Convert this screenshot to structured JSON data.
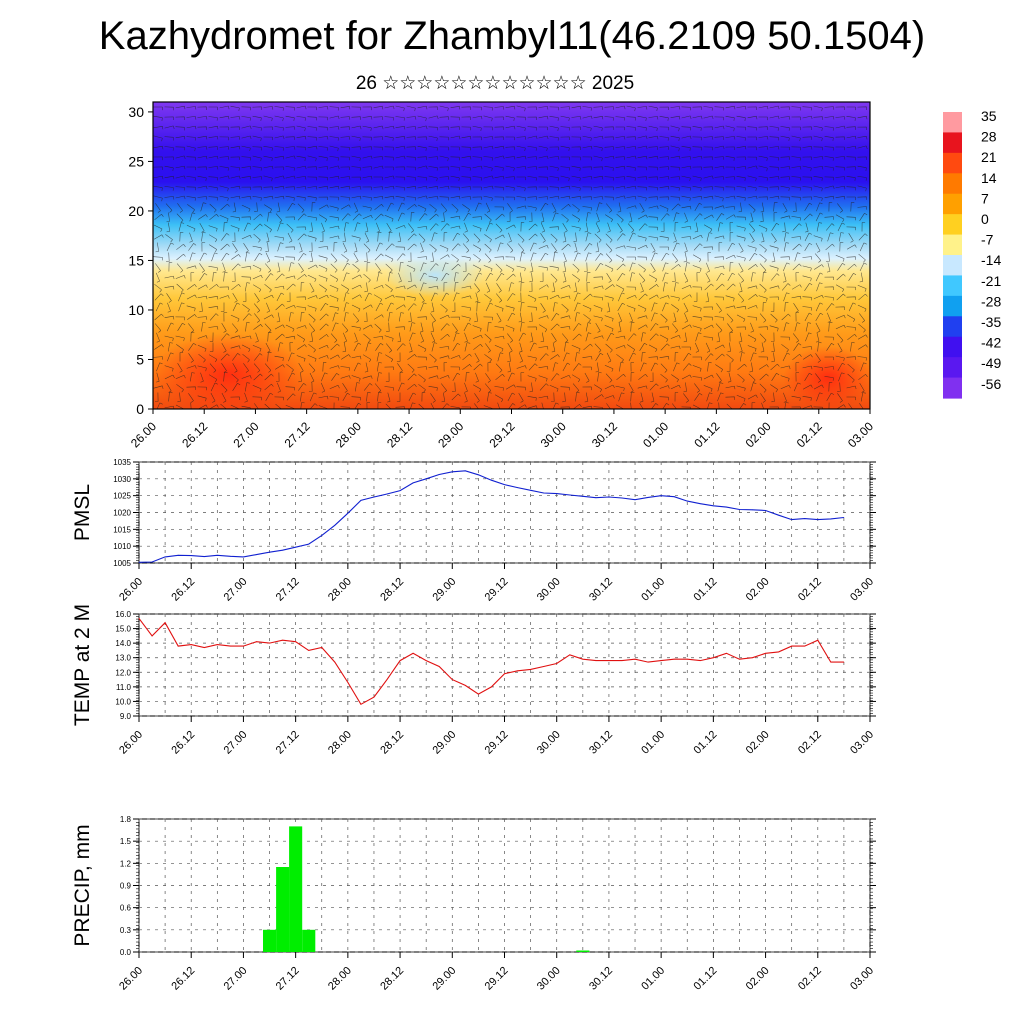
{
  "title": "Kazhydromet for Zhambyl11(46.2109 50.1504)",
  "subtitle": "26 ☆☆☆☆☆☆☆☆☆☆☆☆ 2025",
  "time_labels": [
    "26.00",
    "26.12",
    "27.00",
    "27.12",
    "28.00",
    "28.12",
    "29.00",
    "29.12",
    "30.00",
    "30.12",
    "01.00",
    "01.12",
    "02.00",
    "02.12",
    "03.00"
  ],
  "colors": {
    "pmsl_line": "#1020d0",
    "temp_line": "#e01010",
    "precip_bar": "#00ee00"
  },
  "chart_data": [
    {
      "type": "heatmap",
      "title": "",
      "ylabel": "",
      "ylim": [
        0,
        31
      ],
      "yticks": [
        "0",
        "5",
        "10",
        "15",
        "20",
        "25",
        "30"
      ],
      "x": [
        "26.00",
        "26.12",
        "27.00",
        "27.12",
        "28.00",
        "28.12",
        "29.00",
        "29.12",
        "30.00",
        "30.12",
        "01.00",
        "01.12",
        "02.00",
        "02.12",
        "03.00"
      ],
      "colorbar": {
        "labels": [
          "35",
          "28",
          "21",
          "14",
          "7",
          "0",
          "-7",
          "-14",
          "-21",
          "-28",
          "-35",
          "-42",
          "-49",
          "-56"
        ],
        "colors": [
          "#ff9aa0",
          "#e8141e",
          "#ff4a10",
          "#ff7a00",
          "#ffa000",
          "#ffd020",
          "#fff28a",
          "#c8e8ff",
          "#40c8ff",
          "#10a0f0",
          "#2040f0",
          "#4010f0",
          "#5a18f0",
          "#8030f0"
        ]
      },
      "overlay": "wind-vectors"
    },
    {
      "type": "line",
      "ylabel": "PMSL",
      "ylim": [
        1005,
        1035
      ],
      "yticks": [
        "1005",
        "1010",
        "1015",
        "1020",
        "1025",
        "1030",
        "1035"
      ],
      "grid": true,
      "series": [
        {
          "x": [
            0,
            0.25,
            0.5,
            0.75,
            1,
            1.25,
            1.5,
            1.75,
            2,
            2.25,
            2.5,
            2.75,
            3,
            3.25,
            3.5,
            3.75,
            4,
            4.25,
            4.5,
            4.75,
            5,
            5.25,
            5.5,
            5.75,
            6,
            6.25,
            6.5,
            6.75,
            7,
            7.25,
            7.5,
            7.75,
            8,
            8.25,
            8.5,
            8.75,
            9,
            9.25,
            9.5,
            9.75,
            10,
            10.25,
            10.5,
            10.75,
            11,
            11.25,
            11.5,
            11.75,
            12,
            12.25,
            12.5,
            12.75,
            13,
            13.25,
            13.5
          ],
          "values": [
            1005.2,
            1005.3,
            1006.8,
            1007.3,
            1007.2,
            1006.9,
            1007.3,
            1007.0,
            1006.8,
            1007.5,
            1008.2,
            1008.8,
            1009.7,
            1010.6,
            1013.2,
            1016.2,
            1019.8,
            1023.6,
            1024.6,
            1025.5,
            1026.5,
            1028.8,
            1030.0,
            1031.3,
            1032.1,
            1032.4,
            1031.2,
            1029.6,
            1028.3,
            1027.4,
            1026.6,
            1025.8,
            1025.6,
            1025.2,
            1024.8,
            1024.4,
            1024.6,
            1024.3,
            1023.8,
            1024.5,
            1025.0,
            1024.7,
            1023.4,
            1022.6,
            1022.0,
            1021.6,
            1020.9,
            1020.8,
            1020.6,
            1019.2,
            1017.9,
            1018.2,
            1017.9,
            1018.1,
            1018.5
          ]
        }
      ]
    },
    {
      "type": "line",
      "ylabel": "TEMP at 2 M",
      "ylim": [
        9,
        16
      ],
      "yticks": [
        "9.0",
        "10.0",
        "11.0",
        "12.0",
        "13.0",
        "14.0",
        "15.0",
        "16.0"
      ],
      "grid": true,
      "series": [
        {
          "x": [
            0,
            0.25,
            0.5,
            0.75,
            1,
            1.25,
            1.5,
            1.75,
            2,
            2.25,
            2.5,
            2.75,
            3,
            3.25,
            3.5,
            3.75,
            4,
            4.25,
            4.5,
            4.75,
            5,
            5.25,
            5.5,
            5.75,
            6,
            6.25,
            6.5,
            6.75,
            7,
            7.25,
            7.5,
            7.75,
            8,
            8.25,
            8.5,
            8.75,
            9,
            9.25,
            9.5,
            9.75,
            10,
            10.25,
            10.5,
            10.75,
            11,
            11.25,
            11.5,
            11.75,
            12,
            12.25,
            12.5,
            12.75,
            13,
            13.25,
            13.5
          ],
          "values": [
            15.7,
            14.5,
            15.4,
            13.8,
            13.9,
            13.7,
            13.9,
            13.8,
            13.8,
            14.1,
            14.0,
            14.2,
            14.1,
            13.5,
            13.7,
            12.7,
            11.3,
            9.8,
            10.3,
            11.5,
            12.8,
            13.3,
            12.8,
            12.4,
            11.5,
            11.1,
            10.5,
            11.0,
            11.9,
            12.1,
            12.2,
            12.4,
            12.6,
            13.2,
            12.9,
            12.8,
            12.8,
            12.8,
            12.9,
            12.7,
            12.8,
            12.9,
            12.9,
            12.8,
            13.0,
            13.3,
            12.9,
            13.0,
            13.3,
            13.4,
            13.8,
            13.8,
            14.2,
            12.7,
            12.7
          ]
        }
      ]
    },
    {
      "type": "bar",
      "ylabel": "PRECIP, mm",
      "ylim": [
        0,
        1.8
      ],
      "yticks": [
        "0.0",
        "0.3",
        "0.6",
        "0.9",
        "1.2",
        "1.5",
        "1.8"
      ],
      "grid": true,
      "bar_width_steps": 0.25,
      "x": [
        2.5,
        2.75,
        3,
        3.25,
        8.5
      ],
      "values": [
        0.3,
        1.15,
        1.7,
        0.3,
        0.02
      ]
    }
  ]
}
